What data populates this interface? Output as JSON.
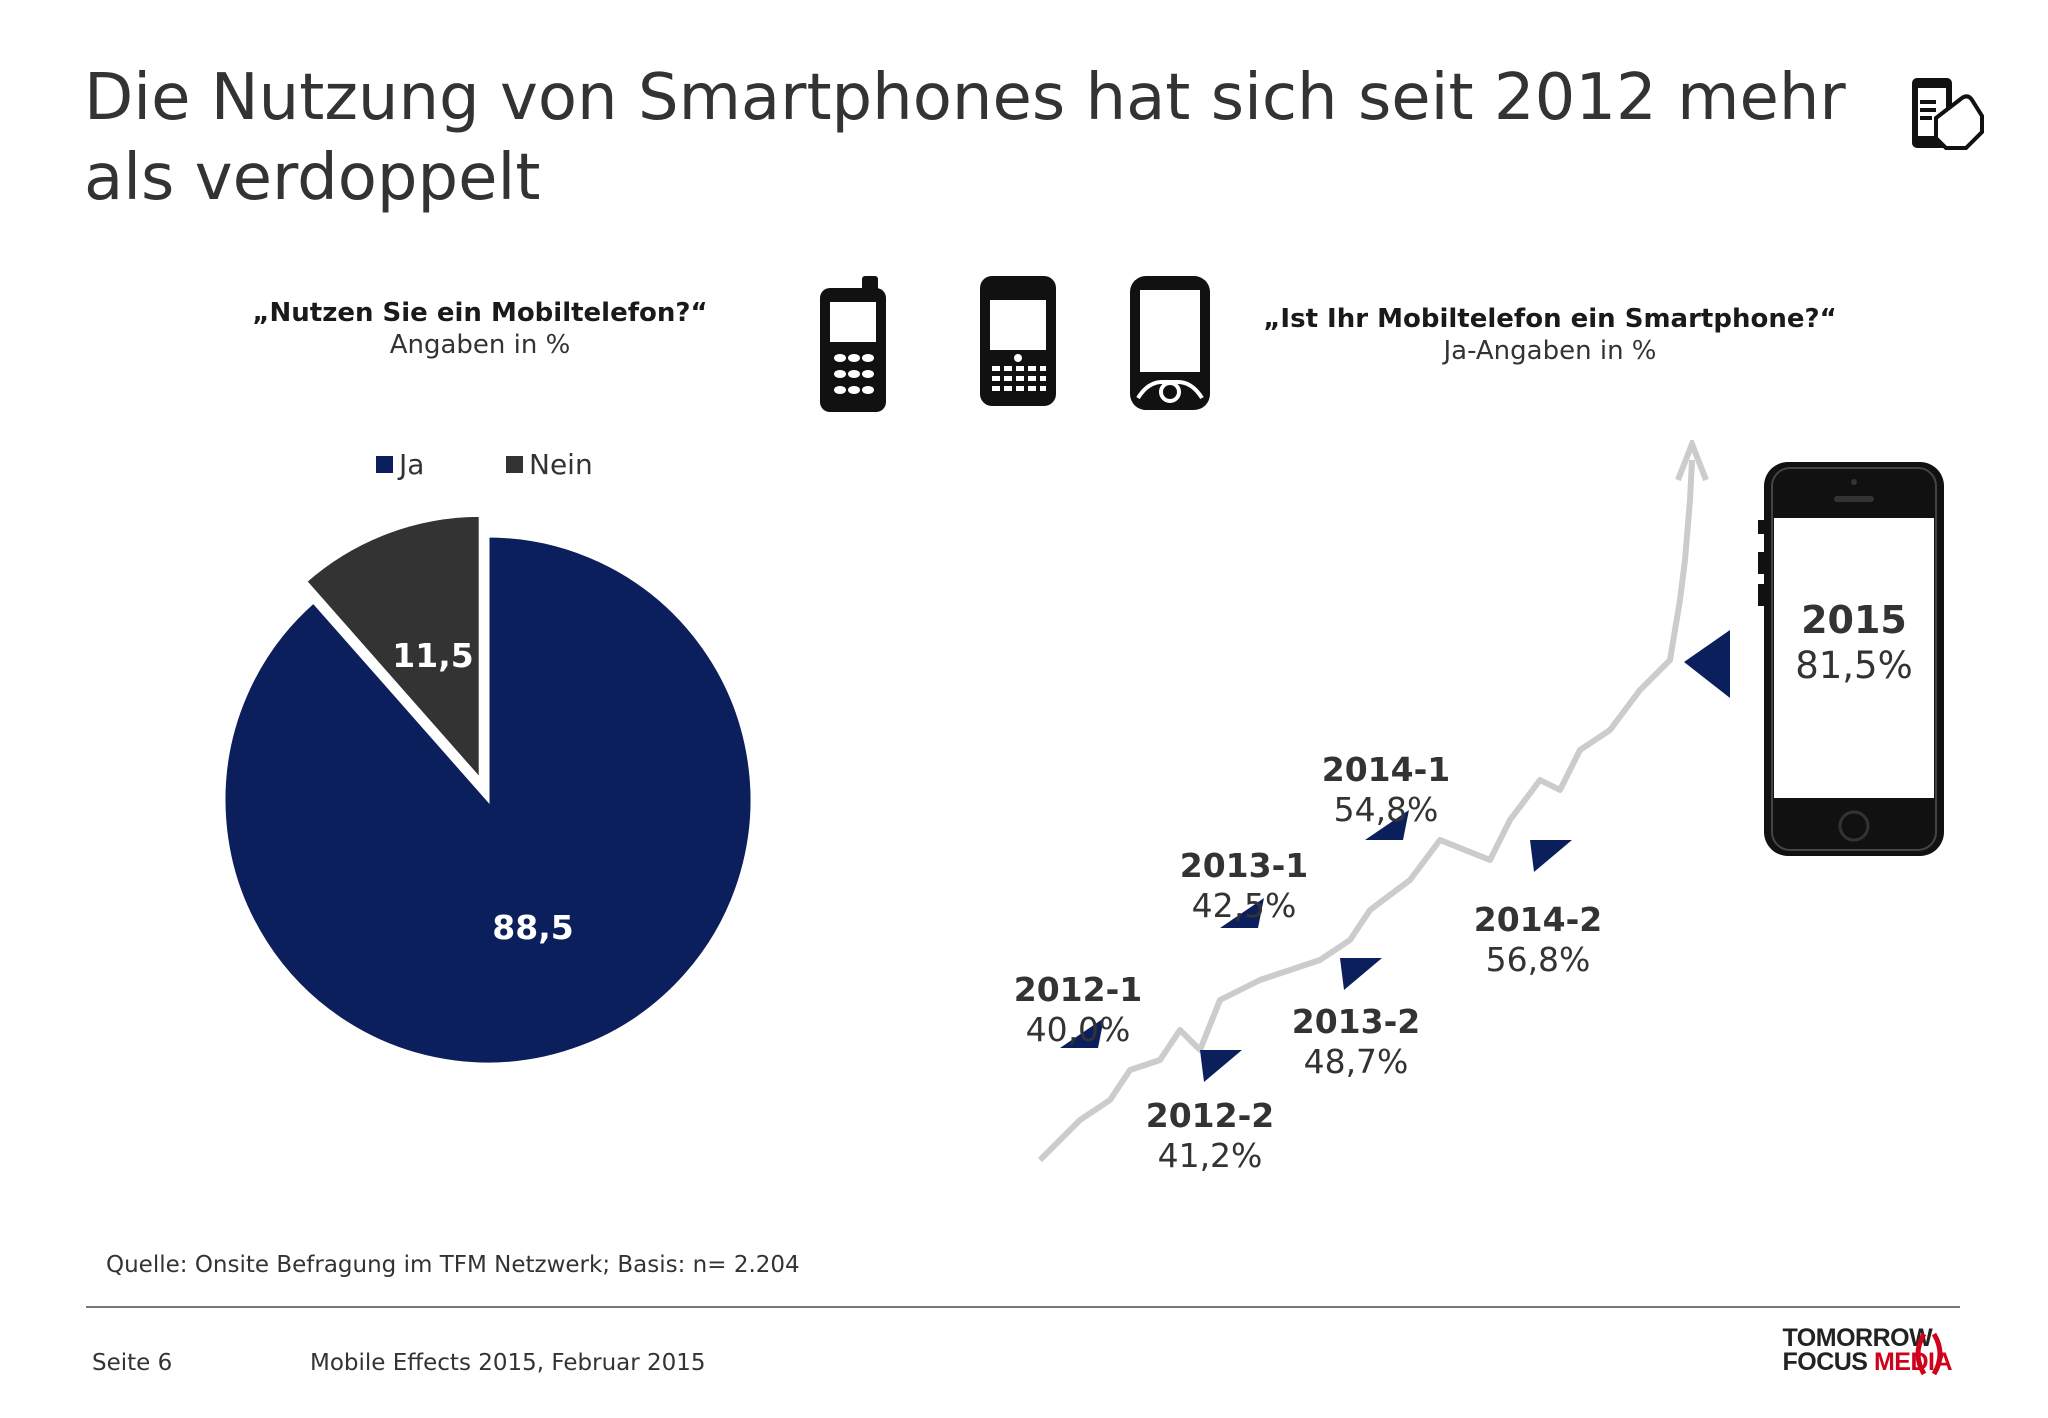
{
  "title": "Die Nutzung von Smartphones hat sich seit 2012 mehr als verdoppelt",
  "left_question": "„Nutzen Sie ein Mobiltelefon?“",
  "left_sub": "Angaben in %",
  "right_question": "„Ist Ihr Mobiltelefon ein Smartphone?“",
  "right_sub": "Ja-Angaben in %",
  "icons": [
    "smartphone-touch-icon",
    "feature-phone-icon",
    "blackberry-phone-icon",
    "touchscreen-phone-icon",
    "iphone-icon"
  ],
  "chart_data": [
    {
      "type": "pie",
      "title": "„Nutzen Sie ein Mobiltelefon?“",
      "subtitle": "Angaben in %",
      "legend_position": "top",
      "series": [
        {
          "name": "Ja",
          "value": 88.5,
          "label": "88,5",
          "color": "#0b1f5c"
        },
        {
          "name": "Nein",
          "value": 11.5,
          "label": "11,5",
          "color": "#333333"
        }
      ]
    },
    {
      "type": "line",
      "title": "„Ist Ihr Mobiltelefon ein Smartphone?“",
      "subtitle": "Ja-Angaben in %",
      "categories": [
        "2012-1",
        "2012-2",
        "2013-1",
        "2013-2",
        "2014-1",
        "2014-2",
        "2015"
      ],
      "values": [
        40.0,
        41.2,
        42.5,
        48.7,
        54.8,
        56.8,
        81.5
      ],
      "labels": [
        "40,0%",
        "41,2%",
        "42,5%",
        "48,7%",
        "54,8%",
        "56,8%",
        "81,5%"
      ],
      "line_color": "#cccccc",
      "marker_color": "#0b1f5c"
    }
  ],
  "footer": {
    "source": "Quelle: Onsite Befragung im TFM Netzwerk; Basis: n= 2.204",
    "page": "Seite 6",
    "report": "Mobile Effects 2015, Februar 2015",
    "logo_line1": "TOMORROW",
    "logo_line2a": "FOCUS ",
    "logo_line2b": "MEDIA"
  },
  "colors": {
    "navy": "#0b1f5c",
    "dark": "#333333",
    "red": "#d0021b"
  }
}
